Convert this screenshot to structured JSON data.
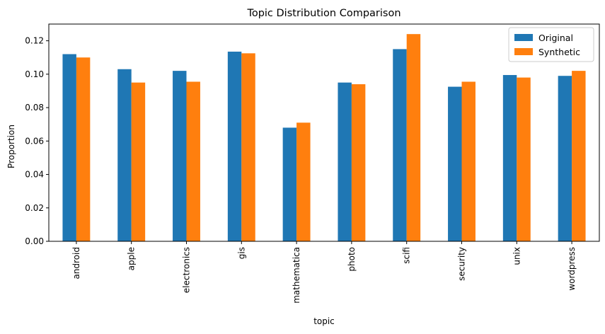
{
  "chart_data": {
    "type": "bar",
    "title": "Topic Distribution Comparison",
    "xlabel": "topic",
    "ylabel": "Proportion",
    "categories": [
      "android",
      "apple",
      "electronics",
      "gis",
      "mathematica",
      "photo",
      "scifi",
      "security",
      "unix",
      "wordpress"
    ],
    "series": [
      {
        "name": "Original",
        "color": "#1f77b4",
        "values": [
          0.112,
          0.103,
          0.102,
          0.1135,
          0.068,
          0.095,
          0.115,
          0.0925,
          0.0995,
          0.099
        ]
      },
      {
        "name": "Synthetic",
        "color": "#ff7f0e",
        "values": [
          0.11,
          0.095,
          0.0955,
          0.1125,
          0.071,
          0.094,
          0.124,
          0.0955,
          0.098,
          0.102
        ]
      }
    ],
    "ylim": [
      0,
      0.13
    ],
    "yticks": [
      "0.00",
      "0.02",
      "0.04",
      "0.06",
      "0.08",
      "0.10",
      "0.12"
    ],
    "ytick_values": [
      0,
      0.02,
      0.04,
      0.06,
      0.08,
      0.1,
      0.12
    ],
    "grid": false,
    "legend_position": "top-right"
  }
}
